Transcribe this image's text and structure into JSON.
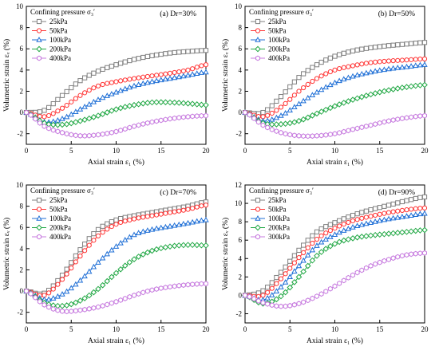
{
  "figure": {
    "confining_title": "Confining pressure σ₃′",
    "xlabel": "Axial strain ε₁ (%)",
    "ylabel": "Volumetric strain εᵥ (%)"
  },
  "colors": {
    "25kPa": "#808080",
    "50kPa": "#ff3333",
    "100kPa": "#1f6fd6",
    "200kPa": "#22a845",
    "300kPa": "#c77bdf",
    "400kPa": "#c77bdf",
    "axis": "#000000"
  },
  "chart_data": [
    {
      "type": "line",
      "panel_label": "(a) Dr=30%",
      "xlabel": "Axial strain ε₁ (%)",
      "ylabel": "Volumetric strain εᵥ (%)",
      "xlim": [
        0,
        20
      ],
      "ylim": [
        -3,
        10
      ],
      "xticks": [
        0,
        5,
        10,
        15,
        20
      ],
      "yticks": [
        -2,
        0,
        2,
        4,
        6,
        8,
        10
      ],
      "legend_title": "Confining pressure σ₃′",
      "series": [
        {
          "name": "25kPa",
          "marker": "square",
          "x": [
            0,
            2,
            4,
            6,
            8,
            10,
            12,
            14,
            16,
            18,
            20
          ],
          "y": [
            0,
            0.2,
            1.6,
            3.0,
            3.9,
            4.5,
            5.0,
            5.35,
            5.6,
            5.75,
            5.85
          ]
        },
        {
          "name": "50kPa",
          "marker": "circle",
          "x": [
            0,
            2,
            4,
            6,
            8,
            10,
            12,
            14,
            16,
            18,
            20
          ],
          "y": [
            0,
            -0.4,
            0.4,
            1.6,
            2.5,
            2.9,
            3.2,
            3.45,
            3.7,
            4.0,
            4.5
          ]
        },
        {
          "name": "100kPa",
          "marker": "triangle",
          "x": [
            0,
            2,
            4,
            6,
            8,
            10,
            12,
            14,
            16,
            18,
            20
          ],
          "y": [
            0,
            -0.9,
            -0.6,
            0.3,
            1.2,
            1.9,
            2.5,
            2.9,
            3.2,
            3.5,
            3.8
          ]
        },
        {
          "name": "200kPa",
          "marker": "diamond",
          "x": [
            0,
            2,
            4,
            6,
            8,
            10,
            12,
            14,
            16,
            18,
            20
          ],
          "y": [
            0,
            -1.0,
            -1.15,
            -0.8,
            -0.3,
            0.3,
            0.7,
            0.95,
            0.95,
            0.85,
            0.7
          ]
        },
        {
          "name": "400kPa",
          "marker": "hexagon",
          "x": [
            0,
            2,
            4,
            6,
            8,
            10,
            12,
            14,
            16,
            18,
            20
          ],
          "y": [
            0,
            -1.3,
            -1.9,
            -2.2,
            -2.1,
            -1.8,
            -1.3,
            -0.9,
            -0.6,
            -0.4,
            -0.3
          ]
        }
      ]
    },
    {
      "type": "line",
      "panel_label": "(b) Dr=50%",
      "xlabel": "Axial strain ε₁ (%)",
      "ylabel": "Volumetric strain εᵥ (%)",
      "xlim": [
        0,
        20
      ],
      "ylim": [
        -3,
        10
      ],
      "xticks": [
        0,
        5,
        10,
        15,
        20
      ],
      "yticks": [
        -2,
        0,
        2,
        4,
        6,
        8,
        10
      ],
      "legend_title": "Confining pressure σ₃′",
      "series": [
        {
          "name": "25kPa",
          "marker": "square",
          "x": [
            0,
            2,
            4,
            6,
            8,
            10,
            12,
            14,
            16,
            18,
            20
          ],
          "y": [
            0,
            0.0,
            1.5,
            3.3,
            4.5,
            5.3,
            5.8,
            6.1,
            6.3,
            6.45,
            6.6
          ]
        },
        {
          "name": "50kPa",
          "marker": "circle",
          "x": [
            0,
            2,
            4,
            6,
            8,
            10,
            12,
            14,
            16,
            18,
            20
          ],
          "y": [
            0,
            -0.4,
            0.5,
            2.0,
            3.2,
            4.0,
            4.4,
            4.7,
            4.85,
            4.95,
            5.05
          ]
        },
        {
          "name": "100kPa",
          "marker": "triangle",
          "x": [
            0,
            2,
            4,
            6,
            8,
            10,
            12,
            14,
            16,
            18,
            20
          ],
          "y": [
            0,
            -0.8,
            -0.3,
            0.8,
            1.9,
            2.8,
            3.4,
            3.8,
            4.1,
            4.3,
            4.5
          ]
        },
        {
          "name": "200kPa",
          "marker": "diamond",
          "x": [
            0,
            2,
            4,
            6,
            8,
            10,
            12,
            14,
            16,
            18,
            20
          ],
          "y": [
            0,
            -1.0,
            -1.1,
            -0.8,
            -0.1,
            0.6,
            1.2,
            1.7,
            2.1,
            2.4,
            2.6
          ]
        },
        {
          "name": "400kPa",
          "marker": "hexagon",
          "x": [
            0,
            2,
            4,
            6,
            8,
            10,
            12,
            14,
            16,
            18,
            20
          ],
          "y": [
            0,
            -1.2,
            -1.9,
            -2.2,
            -2.2,
            -2.0,
            -1.6,
            -1.2,
            -0.8,
            -0.5,
            -0.3
          ]
        }
      ]
    },
    {
      "type": "line",
      "panel_label": "(c) Dr=70%",
      "xlabel": "Axial strain ε₁ (%)",
      "ylabel": "Volumetric strain εᵥ (%)",
      "xlim": [
        0,
        20
      ],
      "ylim": [
        -3,
        10
      ],
      "xticks": [
        0,
        5,
        10,
        15,
        20
      ],
      "yticks": [
        -2,
        0,
        2,
        4,
        6,
        8,
        10
      ],
      "legend_title": "Confining pressure σ₃′",
      "series": [
        {
          "name": "25kPa",
          "marker": "square",
          "x": [
            0,
            2,
            4,
            6,
            8,
            10,
            12,
            14,
            16,
            18,
            20
          ],
          "y": [
            0,
            -0.2,
            1.5,
            3.9,
            5.8,
            6.7,
            7.1,
            7.4,
            7.7,
            8.0,
            8.4
          ]
        },
        {
          "name": "50kPa",
          "marker": "circle",
          "x": [
            0,
            2,
            4,
            6,
            8,
            10,
            12,
            14,
            16,
            18,
            20
          ],
          "y": [
            0,
            -0.4,
            1.1,
            3.3,
            5.2,
            6.3,
            6.8,
            7.1,
            7.4,
            7.7,
            8.1
          ]
        },
        {
          "name": "100kPa",
          "marker": "triangle",
          "x": [
            0,
            2,
            4,
            6,
            8,
            10,
            12,
            14,
            16,
            18,
            20
          ],
          "y": [
            0,
            -0.8,
            -0.3,
            1.0,
            2.7,
            4.2,
            5.3,
            5.8,
            6.1,
            6.4,
            6.7
          ]
        },
        {
          "name": "200kPa",
          "marker": "diamond",
          "x": [
            0,
            2,
            4,
            6,
            8,
            10,
            12,
            14,
            16,
            18,
            20
          ],
          "y": [
            0,
            -1.1,
            -1.4,
            -0.9,
            0.2,
            1.7,
            3.0,
            3.8,
            4.2,
            4.35,
            4.3
          ]
        },
        {
          "name": "400kPa",
          "marker": "hexagon",
          "x": [
            0,
            2,
            4,
            6,
            8,
            10,
            12,
            14,
            16,
            18,
            20
          ],
          "y": [
            0,
            -1.3,
            -1.9,
            -1.8,
            -1.5,
            -1.0,
            -0.4,
            0.1,
            0.4,
            0.6,
            0.7
          ]
        }
      ]
    },
    {
      "type": "line",
      "panel_label": "(d) Dr=90%",
      "xlabel": "Axial strain ε₁ (%)",
      "ylabel": "Volumetric strain εᵥ (%)",
      "xlim": [
        0,
        20
      ],
      "ylim": [
        -3,
        12
      ],
      "xticks": [
        0,
        5,
        10,
        15,
        20
      ],
      "yticks": [
        -2,
        0,
        2,
        4,
        6,
        8,
        10,
        12
      ],
      "legend_title": "Confining pressure σ₃′",
      "series": [
        {
          "name": "25kPa",
          "marker": "square",
          "x": [
            0,
            2,
            4,
            6,
            8,
            10,
            12,
            14,
            16,
            18,
            20
          ],
          "y": [
            0,
            0.5,
            2.5,
            4.9,
            6.9,
            7.9,
            8.7,
            9.3,
            9.8,
            10.3,
            10.7
          ]
        },
        {
          "name": "50kPa",
          "marker": "circle",
          "x": [
            0,
            2,
            4,
            6,
            8,
            10,
            12,
            14,
            16,
            18,
            20
          ],
          "y": [
            0,
            0.0,
            1.8,
            4.1,
            6.1,
            7.3,
            8.1,
            8.6,
            9.0,
            9.3,
            9.5
          ]
        },
        {
          "name": "100kPa",
          "marker": "triangle",
          "x": [
            0,
            2,
            4,
            6,
            8,
            10,
            12,
            14,
            16,
            18,
            20
          ],
          "y": [
            0,
            -0.5,
            0.9,
            3.2,
            5.4,
            6.6,
            7.4,
            7.9,
            8.3,
            8.6,
            8.9
          ]
        },
        {
          "name": "200kPa",
          "marker": "diamond",
          "x": [
            0,
            2,
            4,
            6,
            8,
            10,
            12,
            14,
            16,
            18,
            20
          ],
          "y": [
            0,
            -0.9,
            -0.1,
            2.0,
            4.3,
            5.6,
            6.2,
            6.5,
            6.7,
            6.9,
            7.1
          ]
        },
        {
          "name": "300kPa",
          "marker": "hexagon",
          "x": [
            0,
            2,
            4,
            6,
            8,
            10,
            12,
            14,
            16,
            18,
            20
          ],
          "y": [
            0,
            -0.8,
            -1.2,
            -0.9,
            -0.1,
            1.0,
            2.2,
            3.2,
            3.9,
            4.4,
            4.6
          ]
        }
      ]
    }
  ]
}
